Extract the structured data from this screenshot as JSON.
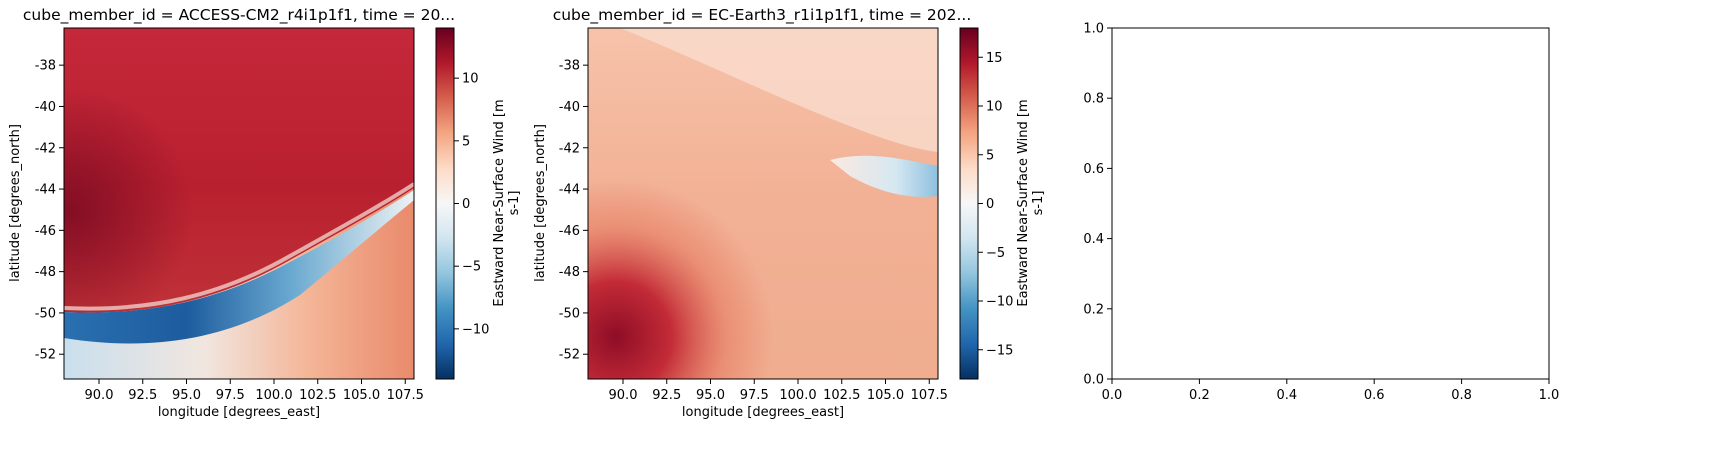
{
  "chart_data": [
    {
      "type": "heatmap",
      "title": "cube_member_id = ACCESS-CM2_r4i1p1f1, time = 20...",
      "xlabel": "longitude [degrees_east]",
      "ylabel": "latitude [degrees_north]",
      "xlim": [
        88.0,
        108.0
      ],
      "ylim": [
        -53.2,
        -36.2
      ],
      "x_ticks": [
        "90.0",
        "92.5",
        "95.0",
        "97.5",
        "100.0",
        "102.5",
        "105.0",
        "107.5"
      ],
      "y_ticks": [
        "-38",
        "-40",
        "-42",
        "-44",
        "-46",
        "-48",
        "-50",
        "-52"
      ],
      "colorbar": {
        "label": "Eastward Near-Surface Wind [m s-1]",
        "label_lines": [
          "Eastward Near-Surface Wind [m",
          "s-1]"
        ],
        "range": [
          -14,
          14
        ],
        "ticks": [
          "10",
          "5",
          "0",
          "−5",
          "−10"
        ],
        "colormap": "RdBu_r"
      }
    },
    {
      "type": "heatmap",
      "title": "cube_member_id = EC-Earth3_r1i1p1f1, time = 202...",
      "xlabel": "longitude [degrees_east]",
      "ylabel": "latitude [degrees_north]",
      "xlim": [
        88.0,
        108.0
      ],
      "ylim": [
        -53.2,
        -36.2
      ],
      "x_ticks": [
        "90.0",
        "92.5",
        "95.0",
        "97.5",
        "100.0",
        "102.5",
        "105.0",
        "107.5"
      ],
      "y_ticks": [
        "-38",
        "-40",
        "-42",
        "-44",
        "-46",
        "-48",
        "-50",
        "-52"
      ],
      "colorbar": {
        "label": "Eastward Near-Surface Wind [m s-1]",
        "label_lines": [
          "Eastward Near-Surface Wind [m",
          "s-1]"
        ],
        "range": [
          -18,
          18
        ],
        "ticks": [
          "15",
          "10",
          "5",
          "0",
          "−5",
          "−10",
          "−15"
        ],
        "colormap": "RdBu_r"
      }
    },
    {
      "type": "scatter",
      "title": "",
      "xlabel": "",
      "ylabel": "",
      "xlim": [
        0.0,
        1.0
      ],
      "ylim": [
        0.0,
        1.0
      ],
      "x_ticks": [
        "0.0",
        "0.2",
        "0.4",
        "0.6",
        "0.8",
        "1.0"
      ],
      "y_ticks": [
        "0.0",
        "0.2",
        "0.4",
        "0.6",
        "0.8",
        "1.0"
      ]
    }
  ]
}
